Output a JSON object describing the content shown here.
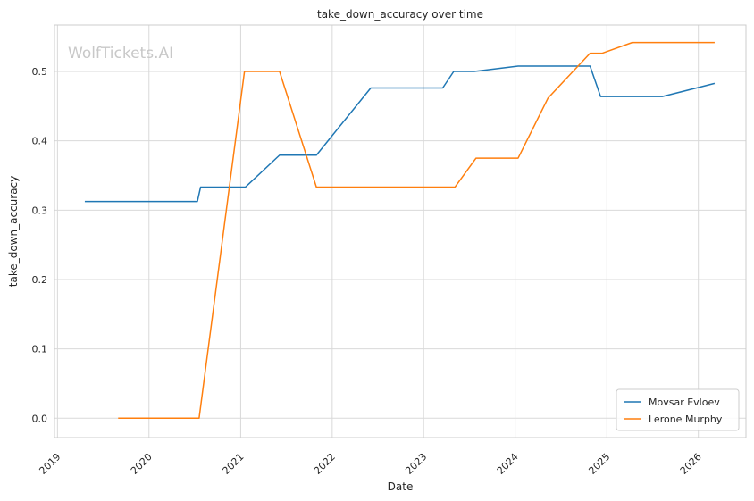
{
  "chart_data": {
    "type": "line",
    "title": "take_down_accuracy over time",
    "xlabel": "Date",
    "ylabel": "take_down_accuracy",
    "watermark": "WolfTickets.AI",
    "x_ticks": [
      "2019",
      "2020",
      "2021",
      "2022",
      "2023",
      "2024",
      "2025",
      "2026"
    ],
    "y_ticks": [
      "0.0",
      "0.1",
      "0.2",
      "0.3",
      "0.4",
      "0.5"
    ],
    "xlim": [
      "2018-12-20",
      "2026-07-10"
    ],
    "ylim": [
      -0.028,
      0.567
    ],
    "grid": true,
    "legend_position": "lower-right",
    "series": [
      {
        "name": "Movsar Evloev",
        "color": "#1f77b4",
        "points": [
          [
            "2019-04-20",
            0.3125
          ],
          [
            "2020-07-12",
            0.3125
          ],
          [
            "2020-07-25",
            0.3333
          ],
          [
            "2021-01-20",
            0.3333
          ],
          [
            "2021-06-05",
            0.3793
          ],
          [
            "2021-10-30",
            0.3793
          ],
          [
            "2022-06-04",
            0.4762
          ],
          [
            "2023-03-18",
            0.4762
          ],
          [
            "2023-05-01",
            0.5
          ],
          [
            "2023-07-22",
            0.5
          ],
          [
            "2024-01-13",
            0.5077
          ],
          [
            "2024-10-26",
            0.5077
          ],
          [
            "2024-12-07",
            0.4638
          ],
          [
            "2025-08-10",
            0.4638
          ],
          [
            "2026-03-07",
            0.4828
          ]
        ]
      },
      {
        "name": "Lerone Murphy",
        "color": "#ff7f0e",
        "points": [
          [
            "2019-08-31",
            0.0
          ],
          [
            "2020-07-19",
            0.0
          ],
          [
            "2021-01-16",
            0.5
          ],
          [
            "2021-06-05",
            0.5
          ],
          [
            "2021-10-30",
            0.3333
          ],
          [
            "2023-05-06",
            0.3333
          ],
          [
            "2023-07-29",
            0.375
          ],
          [
            "2024-01-13",
            0.375
          ],
          [
            "2024-05-11",
            0.4615
          ],
          [
            "2024-10-26",
            0.5263
          ],
          [
            "2024-12-14",
            0.5263
          ],
          [
            "2025-04-12",
            0.5417
          ],
          [
            "2026-03-07",
            0.5417
          ]
        ]
      }
    ]
  }
}
